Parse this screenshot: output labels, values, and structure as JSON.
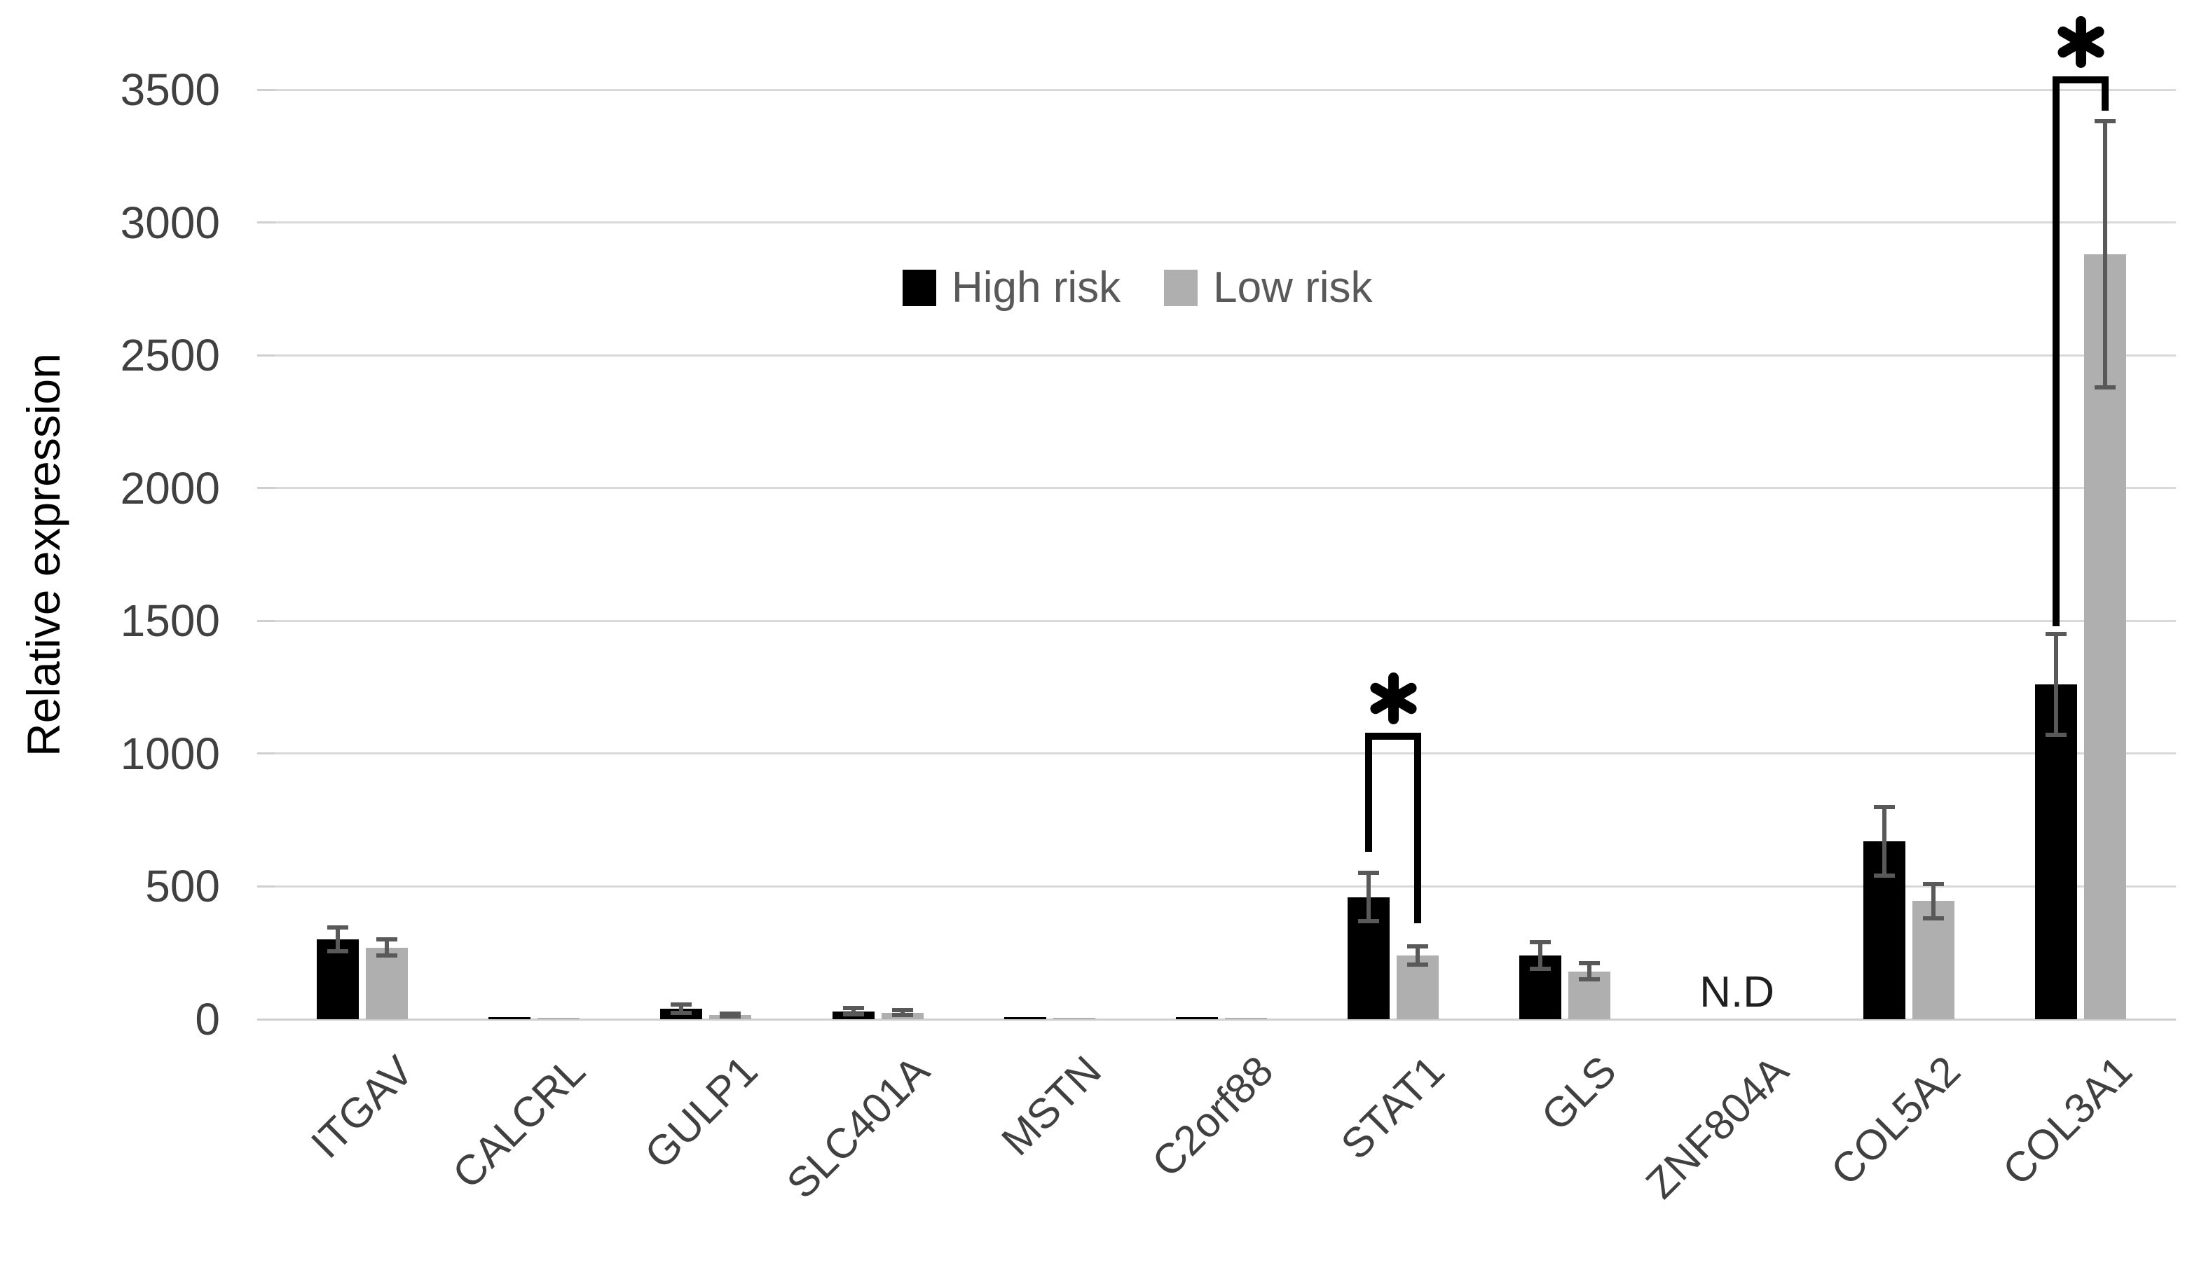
{
  "chart_data": {
    "type": "bar",
    "title": "",
    "ylabel": "Relative expression",
    "xlabel": "",
    "yticks": [
      0,
      500,
      1000,
      1500,
      2000,
      2500,
      3000,
      3500
    ],
    "ylim": [
      0,
      3500
    ],
    "grid": true,
    "legend_position": "top-center",
    "categories": [
      "ITGAV",
      "CALCRL",
      "GULP1",
      "SLC401A",
      "MSTN",
      "C2orf88",
      "STAT1",
      "GLS",
      "ZNF804A",
      "COL5A2",
      "COL3A1"
    ],
    "series": [
      {
        "name": "High risk",
        "color": "#000000",
        "values": [
          300,
          8,
          40,
          30,
          8,
          8,
          460,
          240,
          null,
          670,
          1260
        ],
        "errors": [
          45,
          0,
          15,
          12,
          0,
          0,
          90,
          50,
          0,
          130,
          190
        ]
      },
      {
        "name": "Low risk",
        "color": "#AFAFAF",
        "values": [
          270,
          5,
          15,
          25,
          5,
          5,
          240,
          180,
          null,
          445,
          2880
        ],
        "errors": [
          30,
          0,
          5,
          8,
          0,
          0,
          35,
          30,
          0,
          65,
          500
        ]
      }
    ],
    "annotations": {
      "not_detected": {
        "category": "ZNF804A",
        "label": "N.D"
      },
      "significance": [
        {
          "category": "STAT1",
          "symbol": "*",
          "bracket_top": 1080,
          "left_leg_bottom": 630,
          "right_leg_bottom": 360
        },
        {
          "category": "COL3A1",
          "symbol": "*",
          "bracket_top": 3550,
          "left_leg_bottom": 1480,
          "right_leg_bottom": 3420
        }
      ]
    }
  },
  "colors": {
    "background": "#FFFFFF",
    "gridline": "#D9D9D9",
    "axis_line": "#CFCFCF",
    "tick_text": "#404040",
    "legend_text": "#595959",
    "error_bar": "#595959",
    "high_risk": "#000000",
    "low_risk": "#AFAFAF",
    "annotation_text": "#1F1F1F"
  }
}
